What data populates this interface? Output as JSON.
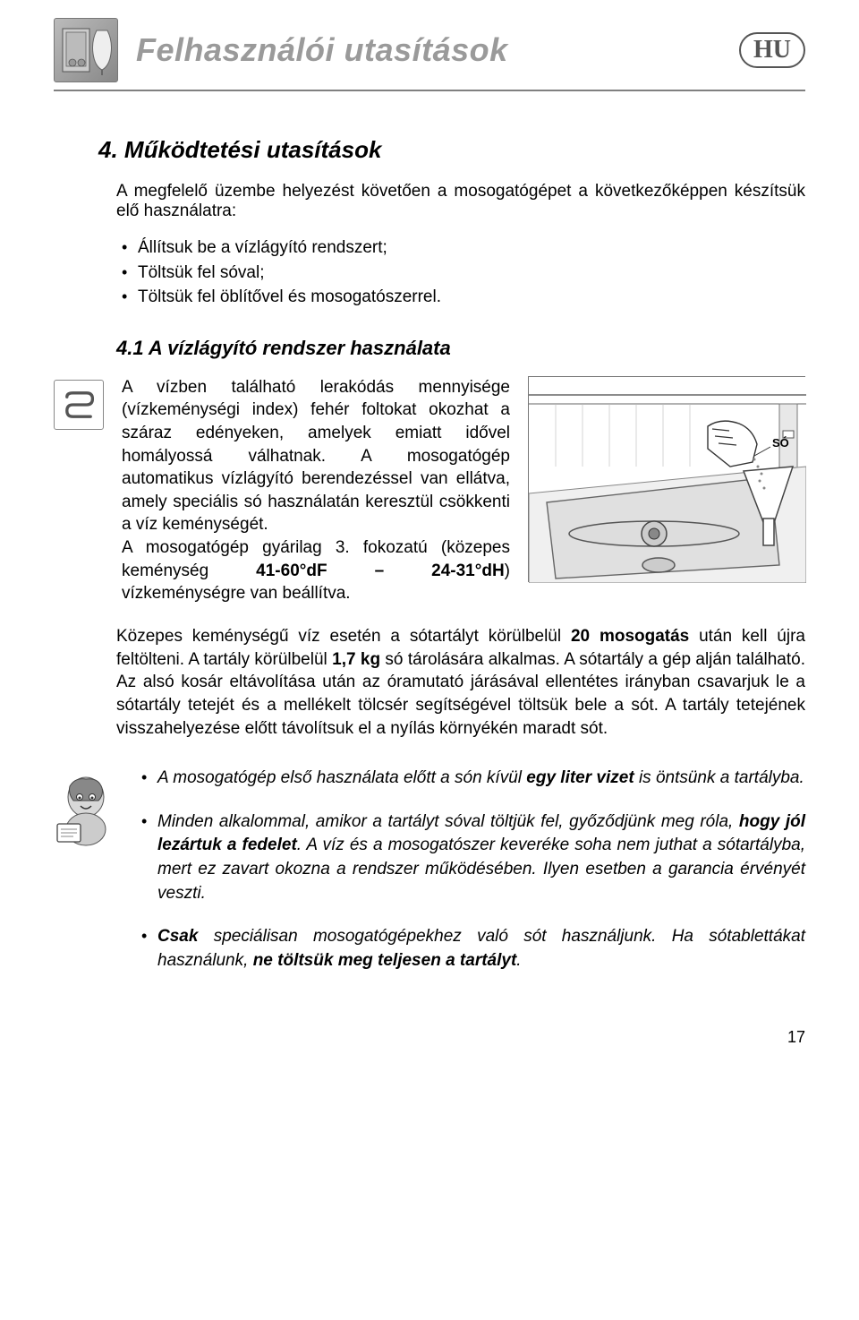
{
  "header": {
    "title": "Felhasználói utasítások",
    "country_code": "HU"
  },
  "section": {
    "title": "4. Működtetési utasítások",
    "intro": "A megfelelő üzembe helyezést követően a mosogatógépet a következőképpen készítsük elő használatra:",
    "prep_items": [
      "Állítsuk be a vízlágyító rendszert;",
      "Töltsük fel sóval;",
      "Töltsük fel öblítővel és mosogatószerrel."
    ]
  },
  "subsection": {
    "title": "4.1 A vízlágyító rendszer használata",
    "text_html": "A vízben található lerakódás mennyisége (vízkeménységi index) fehér foltokat okozhat a száraz edényeken, amelyek emiatt idővel homályossá válhatnak. A mosogatógép automatikus vízlágyító berendezéssel van ellátva, amely speciális só használatán keresztül csökkenti a víz keménységét.<br>A mosogatógép gyárilag 3. fokozatú (közepes keménység <b>41-60°dF – 24-31°dH</b>) vízkeménységre van beállítva.",
    "diagram_label": "SÓ"
  },
  "followup_html": "Közepes keménységű víz esetén a sótartályt körülbelül <b>20 mosogatás</b> után kell újra feltölteni. A tartály körülbelül <b>1,7 kg</b> só tárolására alkalmas. A sótartály a gép alján található. Az alsó kosár eltávolítása után az óramutató járásával ellentétes irányban csavarjuk le a sótartály tetejét és a mellékelt tölcsér segítségével töltsük bele a sót. A tartály tetejének visszahelyezése előtt távolítsuk el a nyílás környékén maradt sót.",
  "tips": [
    "A mosogatógép első használata előtt a són kívül <b>egy liter vizet</b> is öntsünk a tartályba.",
    "Minden alkalommal, amikor a tartályt sóval töltjük fel, győződjünk meg róla, <b>hogy jól lezártuk a fedelet</b>. A víz és a mosogatószer keveréke soha nem juthat a sótartályba, mert ez zavart okozna a rendszer működésében. Ilyen esetben a garancia érvényét veszti.",
    "<b>Csak</b> speciálisan mosogatógépekhez való sót használjunk. Ha sótablettákat használunk, <b>ne töltsük meg teljesen a tartályt</b>."
  ],
  "page_number": "17",
  "colors": {
    "title_gray": "#9a9a9a",
    "rule_gray": "#808080",
    "text": "#000000"
  }
}
